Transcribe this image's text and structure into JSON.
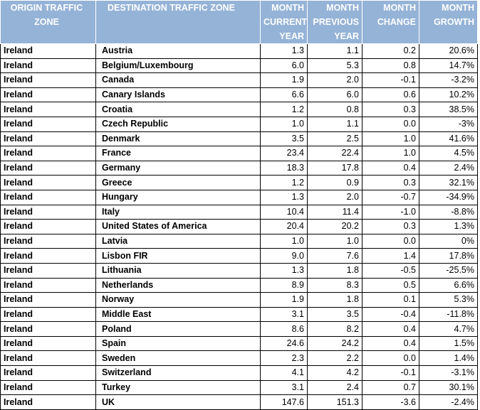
{
  "columns": {
    "origin": "ORIGIN TRAFFIC ZONE",
    "destination": "DESTINATION TRAFFIC ZONE",
    "current": "MONTH CURRENT YEAR",
    "previous": "MONTH PREVIOUS YEAR",
    "change": "MONTH CHANGE",
    "growth": "MONTH GROWTH"
  },
  "rows": [
    {
      "origin": "Ireland",
      "destination": "Austria",
      "current": "1.3",
      "previous": "1.1",
      "change": "0.2",
      "growth": "20.6%"
    },
    {
      "origin": "Ireland",
      "destination": "Belgium/Luxembourg",
      "current": "6.0",
      "previous": "5.3",
      "change": "0.8",
      "growth": "14.7%"
    },
    {
      "origin": "Ireland",
      "destination": "Canada",
      "current": "1.9",
      "previous": "2.0",
      "change": "-0.1",
      "growth": "-3.2%"
    },
    {
      "origin": "Ireland",
      "destination": "Canary Islands",
      "current": "6.6",
      "previous": "6.0",
      "change": "0.6",
      "growth": "10.2%"
    },
    {
      "origin": "Ireland",
      "destination": "Croatia",
      "current": "1.2",
      "previous": "0.8",
      "change": "0.3",
      "growth": "38.5%"
    },
    {
      "origin": "Ireland",
      "destination": "Czech Republic",
      "current": "1.0",
      "previous": "1.1",
      "change": "0.0",
      "growth": "-3%"
    },
    {
      "origin": "Ireland",
      "destination": "Denmark",
      "current": "3.5",
      "previous": "2.5",
      "change": "1.0",
      "growth": "41.6%"
    },
    {
      "origin": "Ireland",
      "destination": "France",
      "current": "23.4",
      "previous": "22.4",
      "change": "1.0",
      "growth": "4.5%"
    },
    {
      "origin": "Ireland",
      "destination": "Germany",
      "current": "18.3",
      "previous": "17.8",
      "change": "0.4",
      "growth": "2.4%"
    },
    {
      "origin": "Ireland",
      "destination": "Greece",
      "current": "1.2",
      "previous": "0.9",
      "change": "0.3",
      "growth": "32.1%"
    },
    {
      "origin": "Ireland",
      "destination": "Hungary",
      "current": "1.3",
      "previous": "2.0",
      "change": "-0.7",
      "growth": "-34.9%"
    },
    {
      "origin": "Ireland",
      "destination": "Italy",
      "current": "10.4",
      "previous": "11.4",
      "change": "-1.0",
      "growth": "-8.8%"
    },
    {
      "origin": "Ireland",
      "destination": "United States of America",
      "current": "20.4",
      "previous": "20.2",
      "change": "0.3",
      "growth": "1.3%"
    },
    {
      "origin": "Ireland",
      "destination": "Latvia",
      "current": "1.0",
      "previous": "1.0",
      "change": "0.0",
      "growth": "0%"
    },
    {
      "origin": "Ireland",
      "destination": "Lisbon FIR",
      "current": "9.0",
      "previous": "7.6",
      "change": "1.4",
      "growth": "17.8%"
    },
    {
      "origin": "Ireland",
      "destination": "Lithuania",
      "current": "1.3",
      "previous": "1.8",
      "change": "-0.5",
      "growth": "-25.5%"
    },
    {
      "origin": "Ireland",
      "destination": "Netherlands",
      "current": "8.9",
      "previous": "8.3",
      "change": "0.5",
      "growth": "6.6%"
    },
    {
      "origin": "Ireland",
      "destination": "Norway",
      "current": "1.9",
      "previous": "1.8",
      "change": "0.1",
      "growth": "5.3%"
    },
    {
      "origin": "Ireland",
      "destination": "Middle East",
      "current": "3.1",
      "previous": "3.5",
      "change": "-0.4",
      "growth": "-11.8%"
    },
    {
      "origin": "Ireland",
      "destination": "Poland",
      "current": "8.6",
      "previous": "8.2",
      "change": "0.4",
      "growth": "4.7%"
    },
    {
      "origin": "Ireland",
      "destination": "Spain",
      "current": "24.6",
      "previous": "24.2",
      "change": "0.4",
      "growth": "1.5%"
    },
    {
      "origin": "Ireland",
      "destination": "Sweden",
      "current": "2.3",
      "previous": "2.2",
      "change": "0.0",
      "growth": "1.4%"
    },
    {
      "origin": "Ireland",
      "destination": "Switzerland",
      "current": "4.1",
      "previous": "4.2",
      "change": "-0.1",
      "growth": "-3.1%"
    },
    {
      "origin": "Ireland",
      "destination": "Turkey",
      "current": "3.1",
      "previous": "2.4",
      "change": "0.7",
      "growth": "30.1%"
    },
    {
      "origin": "Ireland",
      "destination": "UK",
      "current": "147.6",
      "previous": "151.3",
      "change": "-3.6",
      "growth": "-2.4%"
    }
  ]
}
